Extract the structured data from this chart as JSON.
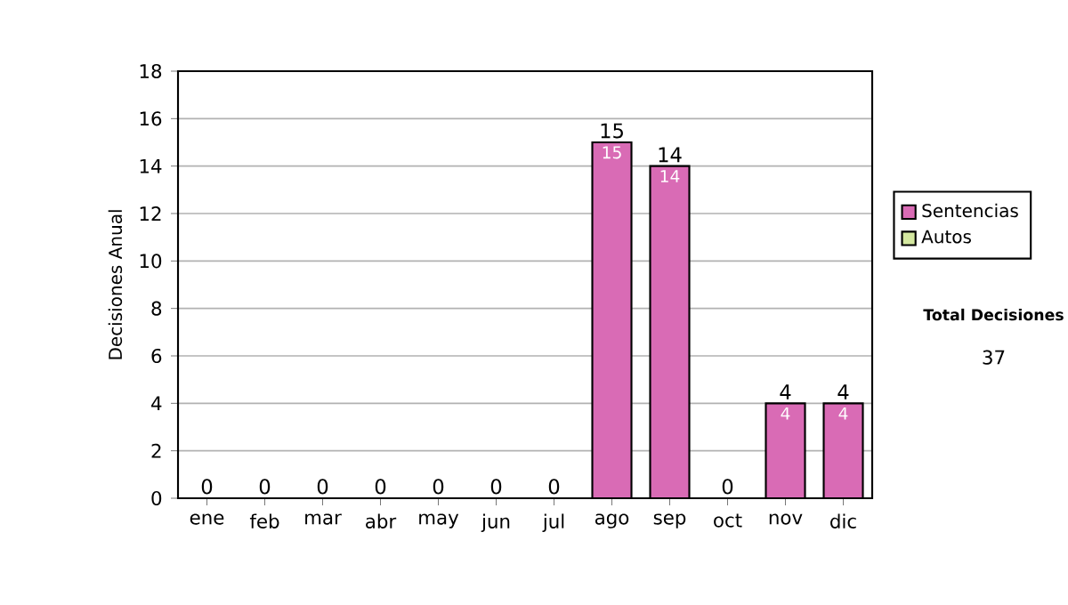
{
  "chart_data": {
    "type": "bar",
    "stacked": true,
    "ylabel": "Decisiones Anual",
    "categories": [
      "ene",
      "feb",
      "mar",
      "abr",
      "may",
      "jun",
      "jul",
      "ago",
      "sep",
      "oct",
      "nov",
      "dic"
    ],
    "series": [
      {
        "name": "Sentencias",
        "color": "#d96bb5",
        "values": [
          0,
          0,
          0,
          0,
          0,
          0,
          0,
          15,
          14,
          0,
          4,
          4
        ],
        "value_labels": [
          null,
          null,
          null,
          null,
          null,
          null,
          null,
          "15",
          "14",
          null,
          "4",
          "4"
        ]
      },
      {
        "name": "Autos",
        "color": "#d4e8a0",
        "values": [
          0,
          0,
          0,
          0,
          0,
          0,
          0,
          0,
          0,
          0,
          0,
          0
        ]
      }
    ],
    "totals": [
      "0",
      "0",
      "0",
      "0",
      "0",
      "0",
      "0",
      "15",
      "14",
      "0",
      "4",
      "4"
    ],
    "ylim": [
      0,
      18
    ],
    "yticks": [
      0,
      2,
      4,
      6,
      8,
      10,
      12,
      14,
      16,
      18
    ],
    "grid": "y",
    "legend": "right",
    "annotations": [
      "Total Decisiones",
      "37"
    ]
  }
}
